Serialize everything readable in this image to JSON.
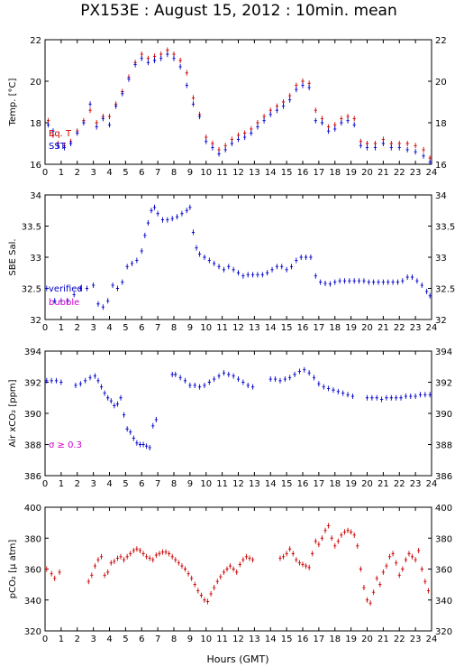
{
  "title": "PX153E : August 15, 2012 : 10min. mean",
  "x_axis": {
    "label": "Hours (GMT)",
    "ticks": [
      "0",
      "1",
      "2",
      "3",
      "4",
      "5",
      "6",
      "7",
      "8",
      "9",
      "10",
      "11",
      "12",
      "13",
      "14",
      "15",
      "16",
      "17",
      "18",
      "19",
      "20",
      "21",
      "22",
      "23",
      "24"
    ]
  },
  "chart_data": [
    {
      "type": "scatter",
      "ylabel": "Temp. [°C]",
      "xlim": [
        0,
        24
      ],
      "ylim": [
        16,
        22
      ],
      "yticks": [
        16,
        18,
        20,
        22
      ],
      "grid": false,
      "legend": [
        {
          "label": "Eq. T",
          "color": "#cc0000"
        },
        {
          "label": "SST",
          "color": "#0000cc"
        }
      ],
      "series": [
        {
          "name": "Eq. T",
          "color": "#cc0000",
          "x": [
            0.2,
            0.5,
            0.8,
            1.2,
            1.6,
            2.0,
            2.4,
            2.8,
            3.2,
            3.6,
            4.0,
            4.4,
            4.8,
            5.2,
            5.6,
            6.0,
            6.4,
            6.8,
            7.2,
            7.6,
            8.0,
            8.4,
            8.8,
            9.2,
            9.6,
            10.0,
            10.4,
            10.8,
            11.2,
            11.6,
            12.0,
            12.4,
            12.8,
            13.2,
            13.6,
            14.0,
            14.4,
            14.8,
            15.2,
            15.6,
            16.0,
            16.4,
            16.8,
            17.2,
            17.6,
            18.0,
            18.4,
            18.8,
            19.2,
            19.6,
            20.0,
            20.5,
            21.0,
            21.5,
            22.0,
            22.5,
            23.0,
            23.5,
            23.9
          ],
          "y": [
            18.1,
            17.4,
            17.0,
            16.9,
            17.1,
            17.6,
            18.1,
            18.6,
            18.0,
            18.3,
            18.3,
            18.9,
            19.5,
            20.2,
            20.9,
            21.3,
            21.1,
            21.2,
            21.3,
            21.5,
            21.3,
            21.0,
            20.4,
            19.2,
            18.4,
            17.3,
            17.0,
            16.7,
            16.9,
            17.2,
            17.4,
            17.5,
            17.7,
            18.0,
            18.3,
            18.6,
            18.8,
            19.0,
            19.3,
            19.8,
            20.0,
            19.9,
            18.6,
            18.2,
            17.8,
            17.9,
            18.2,
            18.3,
            18.2,
            17.1,
            17.0,
            17.0,
            17.2,
            17.0,
            17.0,
            17.0,
            16.9,
            16.7,
            16.3
          ]
        },
        {
          "name": "SST",
          "color": "#0000cc",
          "x": [
            0.2,
            0.5,
            0.8,
            1.2,
            1.6,
            2.0,
            2.4,
            2.8,
            3.2,
            3.6,
            4.0,
            4.4,
            4.8,
            5.2,
            5.6,
            6.0,
            6.4,
            6.8,
            7.2,
            7.6,
            8.0,
            8.4,
            8.8,
            9.2,
            9.6,
            10.0,
            10.4,
            10.8,
            11.2,
            11.6,
            12.0,
            12.4,
            12.8,
            13.2,
            13.6,
            14.0,
            14.4,
            14.8,
            15.2,
            15.6,
            16.0,
            16.4,
            16.8,
            17.2,
            17.6,
            18.0,
            18.4,
            18.8,
            19.2,
            19.6,
            20.0,
            20.5,
            21.0,
            21.5,
            22.0,
            22.5,
            23.0,
            23.5,
            23.9
          ],
          "y": [
            17.9,
            17.6,
            16.9,
            16.8,
            17.0,
            17.5,
            18.0,
            18.9,
            17.8,
            18.2,
            17.9,
            18.8,
            19.4,
            20.1,
            20.8,
            21.1,
            20.9,
            21.0,
            21.1,
            21.3,
            21.1,
            20.7,
            19.8,
            18.9,
            18.3,
            17.1,
            16.8,
            16.5,
            16.7,
            17.0,
            17.2,
            17.3,
            17.5,
            17.8,
            18.1,
            18.4,
            18.6,
            18.8,
            19.1,
            19.6,
            19.8,
            19.7,
            18.1,
            18.0,
            17.6,
            17.7,
            18.0,
            18.1,
            17.9,
            16.9,
            16.8,
            16.8,
            17.0,
            16.8,
            16.8,
            16.7,
            16.6,
            16.4,
            16.1
          ]
        }
      ]
    },
    {
      "type": "scatter",
      "ylabel": "SBE Sal.",
      "xlim": [
        0,
        24
      ],
      "ylim": [
        32,
        34
      ],
      "yticks": [
        "32",
        "32.5",
        "33",
        "33.5",
        "34"
      ],
      "grid": false,
      "legend": [
        {
          "label": "verified",
          "color": "#0000cc"
        },
        {
          "label": "bubble",
          "color": "#cc00cc"
        }
      ],
      "series": [
        {
          "name": "verified",
          "color": "#0000cc",
          "x": [
            0.1,
            0.6,
            1.0,
            1.4,
            1.8,
            2.2,
            2.6,
            3.0,
            3.3,
            3.6,
            3.9,
            4.2,
            4.5,
            4.8,
            5.1,
            5.4,
            5.7,
            6.0,
            6.2,
            6.4,
            6.6,
            6.8,
            7.0,
            7.3,
            7.6,
            7.9,
            8.2,
            8.5,
            8.8,
            9.0,
            9.2,
            9.4,
            9.6,
            9.9,
            10.2,
            10.5,
            10.8,
            11.1,
            11.4,
            11.7,
            12.0,
            12.3,
            12.6,
            12.9,
            13.2,
            13.5,
            13.8,
            14.1,
            14.4,
            14.7,
            15.0,
            15.3,
            15.6,
            15.9,
            16.2,
            16.5,
            16.8,
            17.1,
            17.4,
            17.7,
            18.0,
            18.3,
            18.6,
            18.9,
            19.2,
            19.5,
            19.8,
            20.1,
            20.4,
            20.7,
            21.0,
            21.3,
            21.6,
            21.9,
            22.2,
            22.5,
            22.8,
            23.1,
            23.4,
            23.7,
            23.9
          ],
          "y": [
            32.5,
            32.3,
            32.3,
            32.3,
            32.4,
            32.5,
            32.5,
            32.55,
            32.25,
            32.2,
            32.3,
            32.55,
            32.5,
            32.6,
            32.85,
            32.9,
            32.95,
            33.1,
            33.35,
            33.55,
            33.75,
            33.8,
            33.7,
            33.6,
            33.6,
            33.62,
            33.65,
            33.7,
            33.75,
            33.8,
            33.4,
            33.15,
            33.05,
            33.0,
            32.95,
            32.9,
            32.85,
            32.8,
            32.85,
            32.8,
            32.75,
            32.7,
            32.72,
            32.72,
            32.72,
            32.72,
            32.75,
            32.8,
            32.85,
            32.85,
            32.8,
            32.85,
            32.95,
            33.0,
            33.0,
            33.0,
            32.7,
            32.6,
            32.58,
            32.57,
            32.6,
            32.62,
            32.62,
            32.62,
            32.62,
            32.62,
            32.62,
            32.6,
            32.6,
            32.6,
            32.6,
            32.6,
            32.6,
            32.6,
            32.62,
            32.68,
            32.68,
            32.62,
            32.55,
            32.45,
            32.38
          ]
        }
      ]
    },
    {
      "type": "scatter",
      "ylabel": "Air xCO₂ [ppm]",
      "xlim": [
        0,
        24
      ],
      "ylim": [
        386,
        394
      ],
      "yticks": [
        386,
        388,
        390,
        392,
        394
      ],
      "grid": false,
      "legend": [
        {
          "label": "σ ≥ 0.3",
          "color": "#cc00cc"
        }
      ],
      "series": [
        {
          "name": "",
          "color": "#0000cc",
          "x": [
            0.1,
            0.4,
            0.7,
            1.0,
            1.9,
            2.2,
            2.5,
            2.8,
            3.1,
            3.3,
            3.5,
            3.7,
            3.9,
            4.1,
            4.3,
            4.5,
            4.7,
            4.9,
            5.1,
            5.3,
            5.5,
            5.7,
            5.9,
            6.1,
            6.3,
            6.5,
            6.7,
            6.9,
            7.9,
            8.1,
            8.4,
            8.7,
            9.0,
            9.3,
            9.6,
            9.9,
            10.2,
            10.5,
            10.8,
            11.1,
            11.4,
            11.7,
            12.0,
            12.3,
            12.6,
            12.9,
            14.0,
            14.3,
            14.6,
            14.9,
            15.2,
            15.5,
            15.8,
            16.1,
            16.4,
            16.7,
            17.0,
            17.3,
            17.6,
            17.9,
            18.2,
            18.5,
            18.8,
            19.1,
            20.0,
            20.3,
            20.6,
            20.9,
            21.2,
            21.5,
            21.8,
            22.1,
            22.4,
            22.7,
            23.0,
            23.3,
            23.6,
            23.9
          ],
          "y": [
            392.1,
            392.1,
            392.1,
            392.0,
            391.8,
            391.9,
            392.1,
            392.3,
            392.4,
            392.1,
            391.7,
            391.3,
            391.0,
            390.8,
            390.5,
            390.6,
            391.0,
            389.9,
            389.0,
            388.8,
            388.4,
            388.1,
            388.0,
            388.0,
            387.9,
            387.8,
            389.2,
            389.6,
            392.5,
            392.5,
            392.3,
            392.1,
            391.8,
            391.8,
            391.7,
            391.8,
            392.0,
            392.2,
            392.4,
            392.6,
            392.5,
            392.4,
            392.2,
            392.0,
            391.8,
            391.7,
            392.2,
            392.2,
            392.1,
            392.2,
            392.3,
            392.5,
            392.7,
            392.8,
            392.6,
            392.3,
            391.9,
            391.7,
            391.6,
            391.5,
            391.4,
            391.3,
            391.2,
            391.1,
            391.0,
            391.0,
            391.0,
            390.9,
            391.0,
            391.0,
            391.0,
            391.0,
            391.1,
            391.1,
            391.1,
            391.2,
            391.2,
            391.2
          ]
        }
      ]
    },
    {
      "type": "scatter",
      "ylabel": "pCO₂ [μ atm]",
      "xlim": [
        0,
        24
      ],
      "ylim": [
        320,
        400
      ],
      "yticks": [
        320,
        340,
        360,
        380,
        400
      ],
      "grid": false,
      "legend": [],
      "series": [
        {
          "name": "",
          "color": "#cc0000",
          "x": [
            0.1,
            0.4,
            0.6,
            0.9,
            2.7,
            2.9,
            3.1,
            3.3,
            3.5,
            3.7,
            3.9,
            4.1,
            4.3,
            4.5,
            4.7,
            4.9,
            5.1,
            5.3,
            5.5,
            5.7,
            5.9,
            6.1,
            6.3,
            6.5,
            6.7,
            6.9,
            7.1,
            7.3,
            7.5,
            7.7,
            7.9,
            8.1,
            8.3,
            8.5,
            8.7,
            8.9,
            9.1,
            9.3,
            9.5,
            9.7,
            9.9,
            10.1,
            10.3,
            10.5,
            10.7,
            10.9,
            11.1,
            11.3,
            11.5,
            11.7,
            11.9,
            12.1,
            12.3,
            12.5,
            12.7,
            12.9,
            14.6,
            14.8,
            15.0,
            15.2,
            15.4,
            15.6,
            15.8,
            16.0,
            16.2,
            16.4,
            16.6,
            16.8,
            17.0,
            17.2,
            17.4,
            17.6,
            17.8,
            18.0,
            18.2,
            18.4,
            18.6,
            18.8,
            19.0,
            19.2,
            19.4,
            19.6,
            19.8,
            20.0,
            20.2,
            20.4,
            20.6,
            20.8,
            21.0,
            21.2,
            21.4,
            21.6,
            21.8,
            22.0,
            22.2,
            22.4,
            22.6,
            22.8,
            23.0,
            23.2,
            23.4,
            23.6,
            23.8
          ],
          "y": [
            360,
            357,
            354,
            358,
            352,
            356,
            362,
            366,
            368,
            356,
            358,
            364,
            365,
            367,
            368,
            366,
            368,
            370,
            372,
            373,
            372,
            370,
            368,
            367,
            366,
            369,
            370,
            371,
            371,
            370,
            368,
            366,
            364,
            362,
            360,
            357,
            354,
            350,
            346,
            343,
            340,
            339,
            344,
            348,
            352,
            355,
            358,
            360,
            362,
            360,
            358,
            363,
            366,
            368,
            367,
            366,
            367,
            368,
            370,
            373,
            370,
            366,
            364,
            363,
            362,
            361,
            370,
            378,
            376,
            380,
            385,
            388,
            380,
            375,
            378,
            382,
            384,
            385,
            384,
            382,
            375,
            360,
            348,
            340,
            338,
            345,
            354,
            350,
            358,
            362,
            368,
            370,
            364,
            356,
            360,
            366,
            370,
            368,
            366,
            372,
            360,
            352,
            346
          ]
        }
      ]
    }
  ]
}
